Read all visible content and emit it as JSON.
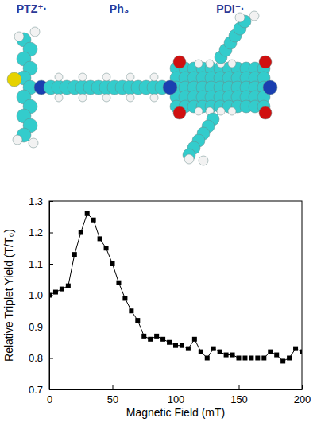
{
  "molecule": {
    "labels": [
      "PTZ⁺·",
      "Ph₃",
      "PDI⁻·"
    ]
  },
  "chart_data": {
    "type": "line",
    "marker": "square",
    "color": "#000000",
    "x_label": "Magnetic Field (mT)",
    "y_label": "Relative Triplet Yield (T/T₀)",
    "x": [
      0,
      5,
      10,
      15,
      20,
      25,
      30,
      35,
      40,
      45,
      50,
      55,
      60,
      65,
      70,
      75,
      80,
      85,
      90,
      95,
      100,
      105,
      110,
      115,
      120,
      125,
      130,
      135,
      140,
      145,
      150,
      155,
      160,
      165,
      170,
      175,
      180,
      185,
      190,
      195,
      200
    ],
    "values": [
      1.0,
      1.01,
      1.02,
      1.03,
      1.13,
      1.2,
      1.26,
      1.24,
      1.18,
      1.15,
      1.1,
      1.04,
      0.99,
      0.95,
      0.92,
      0.87,
      0.86,
      0.87,
      0.86,
      0.85,
      0.84,
      0.84,
      0.83,
      0.86,
      0.82,
      0.8,
      0.83,
      0.82,
      0.81,
      0.81,
      0.8,
      0.8,
      0.8,
      0.8,
      0.8,
      0.82,
      0.81,
      0.79,
      0.8,
      0.83,
      0.82
    ],
    "xlim": [
      0,
      200
    ],
    "xticks": [
      0,
      50,
      100,
      150,
      200
    ],
    "ylim": [
      0.7,
      1.3
    ],
    "yticks": [
      0.7,
      0.8,
      0.9,
      {
        "value": 1,
        "label": "1.0"
      },
      1.1,
      1.2,
      1.3
    ]
  }
}
